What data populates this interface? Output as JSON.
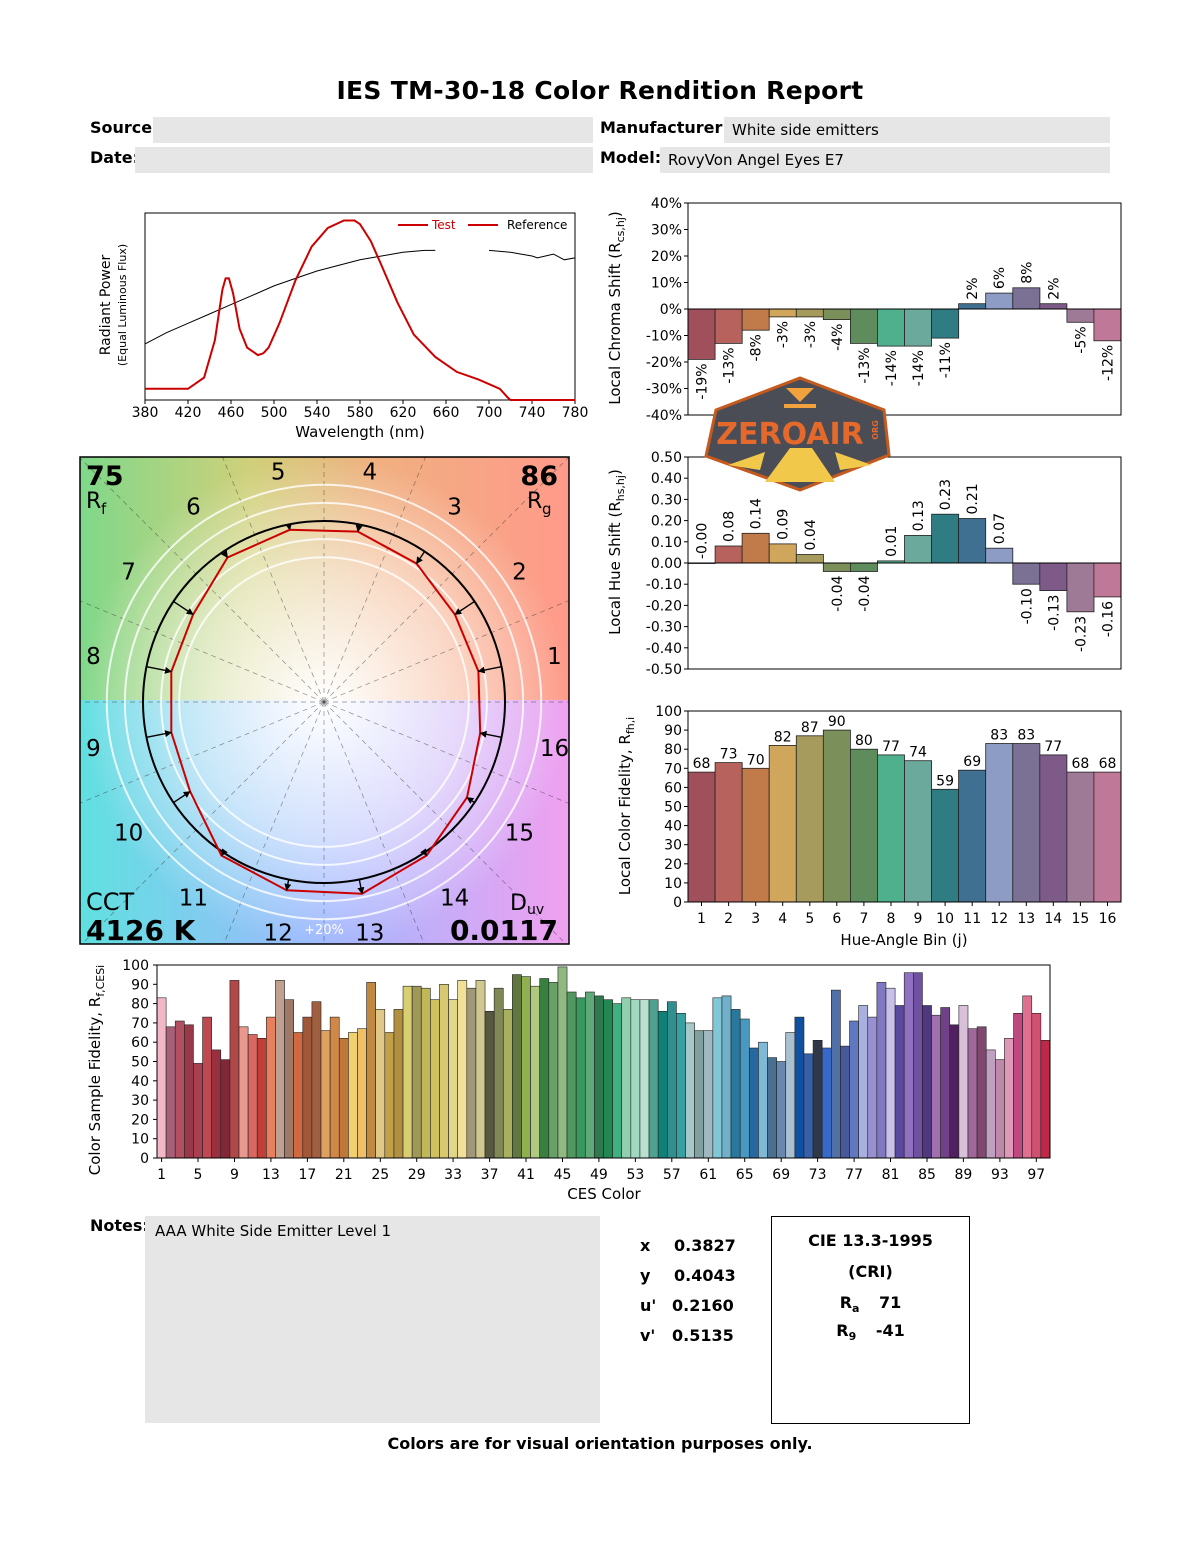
{
  "report": {
    "title": "IES TM-30-18 Color Rendition Report",
    "source_label": "Source:",
    "source_value": "",
    "date_label": "Date:",
    "date_value": "",
    "manufacturer_label": "Manufacturer:",
    "manufacturer_value": "White side emitters",
    "model_label": "Model:",
    "model_value": "RovyVon Angel Eyes E7",
    "notes_label": "Notes:",
    "notes_value": "AAA White Side Emitter Level 1",
    "footer": "Colors are for visual orientation purposes only."
  },
  "chromaticity": {
    "x_label": "x",
    "x_value": "0.3827",
    "y_label": "y",
    "y_value": "0.4043",
    "u_label": "u'",
    "u_value": "0.2160",
    "v_label": "v'",
    "v_value": "0.5135"
  },
  "cri": {
    "line1": "CIE 13.3-1995",
    "line2": "(CRI)",
    "ra_label": "R",
    "ra_sub": "a",
    "ra_value": "71",
    "r9_label": "R",
    "r9_sub": "9",
    "r9_value": "-41"
  },
  "logo": {
    "text": "ZEROAIR",
    "small": "ORG"
  },
  "colors": {
    "test_line": "#cc0000",
    "reference_line": "#000000",
    "field_background": "#e6e6e6",
    "bins": [
      "#a0505a",
      "#b8625e",
      "#c17a4a",
      "#d0a65c",
      "#a69a5c",
      "#7a8f5a",
      "#5e8c5c",
      "#4fb08e",
      "#6aa99c",
      "#2f7d82",
      "#3f7092",
      "#8d9cc4",
      "#7a7194",
      "#7e5a89",
      "#9e7a96",
      "#c07898"
    ]
  },
  "chart_data": [
    {
      "type": "line",
      "id": "spd",
      "xlabel": "Wavelength (nm)",
      "ylabel": "Radiant Power",
      "ylabel_sub": "(Equal Luminous Flux)",
      "xlim": [
        380,
        780
      ],
      "ylim": [
        0,
        1
      ],
      "xticks": [
        380,
        420,
        460,
        500,
        540,
        580,
        620,
        660,
        700,
        740,
        780
      ],
      "series": [
        {
          "name": "Test",
          "x": [
            380,
            400,
            420,
            435,
            445,
            452,
            455,
            458,
            462,
            468,
            475,
            485,
            490,
            495,
            505,
            520,
            535,
            550,
            565,
            575,
            580,
            590,
            600,
            615,
            630,
            650,
            670,
            690,
            710,
            718,
            720,
            780
          ],
          "y": [
            0.06,
            0.06,
            0.06,
            0.12,
            0.32,
            0.59,
            0.65,
            0.65,
            0.57,
            0.38,
            0.28,
            0.24,
            0.25,
            0.28,
            0.41,
            0.64,
            0.82,
            0.92,
            0.96,
            0.96,
            0.94,
            0.85,
            0.72,
            0.52,
            0.35,
            0.23,
            0.15,
            0.11,
            0.06,
            0.01,
            0.0,
            0.0
          ]
        },
        {
          "name": "Reference",
          "x": [
            380,
            400,
            420,
            440,
            460,
            480,
            500,
            520,
            540,
            560,
            580,
            600,
            620,
            640,
            650,
            700,
            720,
            740,
            745,
            760,
            770,
            780
          ],
          "y": [
            0.3,
            0.36,
            0.41,
            0.46,
            0.51,
            0.56,
            0.61,
            0.65,
            0.69,
            0.72,
            0.75,
            0.77,
            0.79,
            0.8,
            0.8,
            0.8,
            0.79,
            0.77,
            0.76,
            0.78,
            0.75,
            0.76
          ]
        }
      ]
    },
    {
      "type": "bar",
      "id": "chroma",
      "ylabel": "Local Chroma Shift (R",
      "ylabel_sub": "cs,hj",
      "ylim": [
        -0.4,
        0.4
      ],
      "yticks": [
        "40%",
        "30%",
        "20%",
        "10%",
        "0%",
        "-10%",
        "-20%",
        "-30%",
        "-40%"
      ],
      "categories": [
        1,
        2,
        3,
        4,
        5,
        6,
        7,
        8,
        9,
        10,
        11,
        12,
        13,
        14,
        15,
        16
      ],
      "values": [
        -0.19,
        -0.13,
        -0.08,
        -0.03,
        -0.03,
        -0.04,
        -0.13,
        -0.14,
        -0.14,
        -0.11,
        0.02,
        0.06,
        0.08,
        0.02,
        -0.05,
        -0.12
      ],
      "labels": [
        "-19%",
        "-13%",
        "-8%",
        "-3%",
        "-3%",
        "-4%",
        "-13%",
        "-14%",
        "-14%",
        "-11%",
        "2%",
        "6%",
        "8%",
        "2%",
        "-5%",
        "-12%"
      ]
    },
    {
      "type": "bar",
      "id": "hue",
      "ylabel": "Local Hue Shift (R",
      "ylabel_sub": "hs,hj",
      "ylim": [
        -0.5,
        0.5
      ],
      "yticks": [
        "0.50",
        "0.40",
        "0.30",
        "0.20",
        "0.10",
        "0.00",
        "-0.10",
        "-0.20",
        "-0.30",
        "-0.40",
        "-0.50"
      ],
      "categories": [
        1,
        2,
        3,
        4,
        5,
        6,
        7,
        8,
        9,
        10,
        11,
        12,
        13,
        14,
        15,
        16
      ],
      "values": [
        0.0,
        0.08,
        0.14,
        0.09,
        0.04,
        -0.04,
        -0.04,
        0.01,
        0.13,
        0.23,
        0.21,
        0.07,
        -0.1,
        -0.13,
        -0.23,
        -0.16
      ],
      "labels": [
        "-0.00",
        "0.08",
        "0.14",
        "0.09",
        "0.04",
        "-0.04",
        "-0.04",
        "0.01",
        "0.13",
        "0.23",
        "0.21",
        "0.07",
        "-0.10",
        "-0.13",
        "-0.23",
        "-0.16"
      ]
    },
    {
      "type": "bar",
      "id": "fidelity",
      "ylabel": "Local Color Fidelity, R",
      "ylabel_sub": "fh,i",
      "xlabel": "Hue-Angle Bin (j)",
      "ylim": [
        0,
        100
      ],
      "yticks": [
        "100",
        "90",
        "80",
        "70",
        "60",
        "50",
        "40",
        "30",
        "20",
        "10",
        "0"
      ],
      "categories": [
        1,
        2,
        3,
        4,
        5,
        6,
        7,
        8,
        9,
        10,
        11,
        12,
        13,
        14,
        15,
        16
      ],
      "values": [
        68,
        73,
        70,
        82,
        87,
        90,
        80,
        77,
        74,
        59,
        69,
        83,
        83,
        77,
        68,
        68
      ]
    },
    {
      "type": "polar",
      "id": "cvg",
      "rf_value": "75",
      "rf_label": "R",
      "rf_sub": "f",
      "rg_value": "86",
      "rg_label": "R",
      "rg_sub": "g",
      "cct_label": "CCT",
      "cct_value": "4126 K",
      "duv_label": "D",
      "duv_sub": "uv",
      "duv_value": "0.0117",
      "ring_label": "+20%",
      "bins": [
        "1",
        "2",
        "3",
        "4",
        "5",
        "6",
        "7",
        "8",
        "9",
        "10",
        "11",
        "12",
        "13",
        "14",
        "15",
        "16"
      ],
      "test_radius": [
        0.87,
        0.87,
        0.92,
        0.96,
        0.97,
        0.96,
        0.87,
        0.86,
        0.86,
        0.89,
        1.02,
        1.06,
        1.08,
        1.02,
        0.95,
        0.88
      ]
    },
    {
      "type": "bar",
      "id": "ces",
      "ylabel": "Color Sample Fidelity, R",
      "ylabel_sub": "f,CESi",
      "xlabel": "CES Color",
      "ylim": [
        0,
        100
      ],
      "yticks": [
        "100",
        "90",
        "80",
        "70",
        "60",
        "50",
        "40",
        "30",
        "20",
        "10",
        "0"
      ],
      "xticks": [
        "1",
        "5",
        "9",
        "13",
        "17",
        "21",
        "25",
        "29",
        "33",
        "37",
        "41",
        "45",
        "49",
        "53",
        "57",
        "61",
        "65",
        "69",
        "73",
        "77",
        "81",
        "85",
        "89",
        "93",
        "97"
      ],
      "values": [
        83,
        68,
        71,
        69,
        49,
        73,
        56,
        51,
        92,
        68,
        64,
        62,
        73,
        92,
        82,
        65,
        73,
        81,
        66,
        73,
        62,
        65,
        67,
        91,
        77,
        65,
        77,
        89,
        89,
        88,
        82,
        90,
        82,
        92,
        88,
        92,
        76,
        88,
        77,
        95,
        94,
        89,
        93,
        91,
        99,
        86,
        83,
        86,
        84,
        82,
        80,
        83,
        82,
        82,
        82,
        76,
        81,
        75,
        70,
        66,
        66,
        83,
        84,
        77,
        72,
        57,
        60,
        52,
        50,
        65,
        73,
        54,
        61,
        57,
        87,
        58,
        71,
        79,
        73,
        91,
        88,
        79,
        96,
        96,
        79,
        74,
        78,
        69,
        79,
        67,
        68,
        56,
        51,
        62,
        75,
        84,
        75,
        61
      ],
      "colors": [
        "#f2b8c6",
        "#a86078",
        "#b05060",
        "#983848",
        "#a84050",
        "#c04850",
        "#983040",
        "#802838",
        "#b04848",
        "#e8988c",
        "#d86860",
        "#c04038",
        "#e88060",
        "#c0a090",
        "#a07868",
        "#d06840",
        "#a05838",
        "#a06040",
        "#e0a060",
        "#d08848",
        "#c07838",
        "#f0d070",
        "#f0c068",
        "#c08840",
        "#e0c888",
        "#c0a048",
        "#b09040",
        "#d8d070",
        "#a09858",
        "#c0b858",
        "#d0c060",
        "#d8c870",
        "#e0d888",
        "#f0e098",
        "#a09878",
        "#d0c890",
        "#585840",
        "#808858",
        "#a8b060",
        "#607840",
        "#90b050",
        "#b0c880",
        "#388040",
        "#68a068",
        "#90b880",
        "#509860",
        "#389860",
        "#60a878",
        "#307850",
        "#208850",
        "#40b080",
        "#90d0b0",
        "#a0d8c0",
        "#b8e0d0",
        "#50a090",
        "#108078",
        "#309090",
        "#38a0a0",
        "#a8c8c8",
        "#80a0a0",
        "#a0b8c0",
        "#80c8d8",
        "#70b0c8",
        "#2878a0",
        "#4898c0",
        "#2868a0",
        "#80b8d8",
        "#487090",
        "#6888b0",
        "#a8c0d0",
        "#1050a0",
        "#3860a8",
        "#303848",
        "#3868c8",
        "#5070a8",
        "#485898",
        "#6078c0",
        "#a8b0e0",
        "#9890d0",
        "#8078c0",
        "#c8c0e8",
        "#5848a0",
        "#9070c0",
        "#7050a0",
        "#503880",
        "#a070b0",
        "#704088",
        "#502060",
        "#d8c0d8",
        "#a06898",
        "#804870",
        "#c0a0c0",
        "#c088a8",
        "#e098b8",
        "#c04880",
        "#e07090",
        "#d05070",
        "#c02848"
      ]
    }
  ]
}
